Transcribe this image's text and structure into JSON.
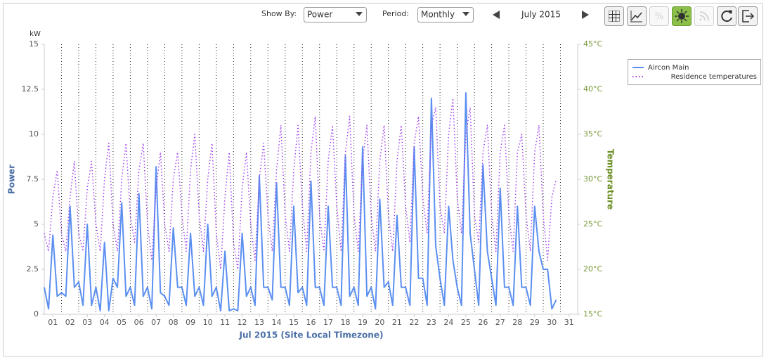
{
  "toolbar": {
    "show_by_label": "Show By:",
    "show_by_value": "Power",
    "period_label": "Period:",
    "period_value": "Monthly",
    "current_period": "July 2015"
  },
  "chart_data": {
    "type": "line",
    "y_unit": "kW",
    "ylabel": "Power",
    "y2label": "Temperature",
    "xlabel": "Jul 2015 (Site Local Timezone)",
    "xlim": [
      0.5,
      31.5
    ],
    "xticks": [
      {
        "value": 1,
        "label": "01"
      },
      {
        "value": 2,
        "label": "02"
      },
      {
        "value": 3,
        "label": "03"
      },
      {
        "value": 4,
        "label": "04"
      },
      {
        "value": 5,
        "label": "05"
      },
      {
        "value": 6,
        "label": "06"
      },
      {
        "value": 7,
        "label": "07"
      },
      {
        "value": 8,
        "label": "08"
      },
      {
        "value": 9,
        "label": "09"
      },
      10,
      11,
      12,
      13,
      14,
      15,
      16,
      17,
      18,
      19,
      20,
      21,
      22,
      23,
      24,
      25,
      26,
      27,
      28,
      29,
      30,
      31
    ],
    "ylim": [
      0,
      15
    ],
    "yticks": [
      0,
      2.5,
      5,
      7.5,
      10,
      12.5,
      15
    ],
    "y2lim": [
      15,
      45
    ],
    "y2ticks": [
      {
        "value": 15,
        "label": "15°C"
      },
      {
        "value": 20,
        "label": "20°C"
      },
      {
        "value": 25,
        "label": "25°C"
      },
      {
        "value": 30,
        "label": "30°C"
      },
      {
        "value": 35,
        "label": "35°C"
      },
      {
        "value": 40,
        "label": "40°C"
      },
      {
        "value": 45,
        "label": "45°C"
      }
    ],
    "grid": true,
    "legend": "upper-right",
    "x": [
      0.5,
      0.75,
      1,
      1.25,
      1.5,
      1.75,
      2,
      2.25,
      2.5,
      2.75,
      3,
      3.25,
      3.5,
      3.75,
      4,
      4.25,
      4.5,
      4.75,
      5,
      5.25,
      5.5,
      5.75,
      6,
      6.25,
      6.5,
      6.75,
      7,
      7.25,
      7.5,
      7.75,
      8,
      8.25,
      8.5,
      8.75,
      9,
      9.25,
      9.5,
      9.75,
      10,
      10.25,
      10.5,
      10.75,
      11,
      11.25,
      11.5,
      11.75,
      12,
      12.25,
      12.5,
      12.75,
      13,
      13.25,
      13.5,
      13.75,
      14,
      14.25,
      14.5,
      14.75,
      15,
      15.25,
      15.5,
      15.75,
      16,
      16.25,
      16.5,
      16.75,
      17,
      17.25,
      17.5,
      17.75,
      18,
      18.25,
      18.5,
      18.75,
      19,
      19.25,
      19.5,
      19.75,
      20,
      20.25,
      20.5,
      20.75,
      21,
      21.25,
      21.5,
      21.75,
      22,
      22.25,
      22.5,
      22.75,
      23,
      23.25,
      23.5,
      23.75,
      24,
      24.25,
      24.5,
      24.75,
      25,
      25.25,
      25.5,
      25.75,
      26,
      26.25,
      26.5,
      26.75,
      27,
      27.25,
      27.5,
      27.75,
      28,
      28.25,
      28.5,
      28.75,
      29,
      29.25,
      29.5,
      29.75,
      30,
      30.25
    ],
    "series": [
      {
        "name": "Aircon Main",
        "color": "#5b8ff0",
        "style": "solid",
        "values": [
          1.5,
          0.3,
          4.4,
          1.0,
          1.2,
          1.0,
          6.0,
          1.5,
          1.8,
          0.5,
          5.0,
          0.5,
          1.5,
          0.2,
          4.0,
          0.2,
          2.0,
          1.5,
          6.2,
          1.0,
          1.5,
          0.5,
          6.7,
          1.0,
          1.5,
          0.3,
          8.2,
          1.2,
          1.0,
          0.5,
          4.8,
          1.5,
          1.5,
          0.5,
          4.5,
          1.0,
          1.5,
          0.5,
          5.0,
          1.0,
          1.5,
          0.2,
          3.5,
          0.2,
          0.3,
          0.2,
          4.5,
          1.0,
          1.5,
          0.5,
          7.7,
          1.5,
          1.5,
          0.8,
          7.3,
          1.5,
          1.5,
          0.5,
          6.0,
          1.2,
          1.5,
          0.5,
          7.4,
          1.5,
          1.5,
          0.5,
          6.0,
          1.5,
          1.5,
          0.5,
          8.8,
          1.0,
          1.5,
          0.5,
          9.3,
          1.0,
          1.5,
          0.3,
          6.4,
          1.5,
          1.8,
          0.5,
          5.5,
          1.5,
          1.5,
          0.5,
          9.3,
          2.0,
          2.0,
          0.5,
          12.0,
          3.8,
          2.0,
          0.5,
          6.0,
          3.0,
          1.5,
          0.5,
          12.3,
          4.5,
          2.5,
          0.5,
          8.3,
          3.5,
          2.0,
          0.5,
          7.0,
          1.5,
          1.5,
          0.5,
          6.0,
          1.5,
          1.5,
          0.5,
          6.0,
          3.5,
          2.5,
          2.5,
          0.3,
          0.8
        ]
      },
      {
        "name": "Residence temperatures",
        "color": "#a040f0",
        "style": "dotted",
        "axis": "y2",
        "values": [
          24,
          22,
          28,
          31,
          24,
          22,
          28,
          32,
          24,
          22,
          29,
          32,
          25,
          22,
          30,
          34,
          25,
          22,
          30,
          34,
          26,
          23,
          31,
          34,
          25,
          21,
          29,
          33,
          25,
          22,
          30,
          33,
          26,
          22,
          31,
          35,
          26,
          22,
          30,
          34,
          24,
          20,
          28,
          33,
          23,
          20,
          29,
          33,
          25,
          21,
          30,
          34,
          26,
          22,
          31,
          36,
          26,
          22,
          31,
          36,
          27,
          22,
          33,
          37,
          26,
          22,
          32,
          36,
          27,
          22,
          33,
          37,
          26,
          22,
          32,
          36,
          26,
          22,
          32,
          36,
          26,
          22,
          32,
          36,
          27,
          23,
          34,
          37,
          28,
          24,
          36,
          38,
          27,
          24,
          35,
          39,
          28,
          24,
          35,
          38,
          26,
          23,
          33,
          36,
          26,
          22,
          33,
          36,
          26,
          22,
          33,
          35,
          26,
          22,
          33,
          36,
          26,
          21,
          28,
          30
        ]
      }
    ]
  }
}
